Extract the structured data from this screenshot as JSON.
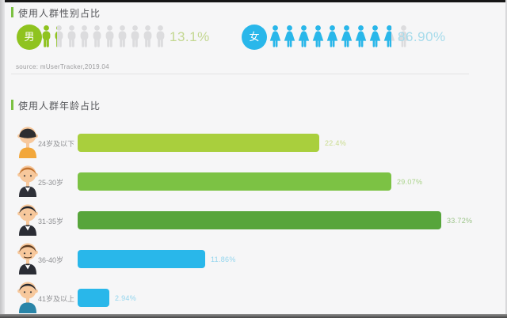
{
  "chart_data": [
    {
      "type": "pictogram",
      "title": "使用人群性别占比",
      "unit": "%",
      "icon_gray": "#dcdcde",
      "series": [
        {
          "name": "男",
          "value": 13.1,
          "label": "13.1%",
          "color": "#8fc31f",
          "value_color": "#c3d791",
          "icons_total": 10,
          "icons_filled": 1.31,
          "icon": "male-person-icon"
        },
        {
          "name": "女",
          "value": 86.9,
          "label": "86.90%",
          "color": "#29b7ea",
          "value_color": "#a6dbeb",
          "icons_total": 10,
          "icons_filled": 8.69,
          "icon": "female-person-icon"
        }
      ],
      "source": "source: mUserTracker,2019.04"
    },
    {
      "type": "bar",
      "orientation": "horizontal",
      "title": "使用人群年龄占比",
      "unit": "%",
      "categories": [
        "24岁及以下",
        "25-30岁",
        "31-35岁",
        "36-40岁",
        "41岁及以上"
      ],
      "values": [
        22.4,
        29.07,
        33.72,
        11.86,
        2.94
      ],
      "value_labels": [
        "22.4%",
        "29.07%",
        "33.72%",
        "11.86%",
        "2.94%"
      ],
      "bar_colors": [
        "#a9cf3d",
        "#7cc244",
        "#57a53b",
        "#29b7ea",
        "#29b7ea"
      ],
      "value_label_colors": [
        "#c9dc8e",
        "#a9d389",
        "#9cc489",
        "#93d5ee",
        "#93d5ee"
      ],
      "avatars": [
        "boy",
        "young-man",
        "man-suit",
        "man-mustache",
        "middle-aged-man"
      ],
      "xlim": [
        0,
        38.5
      ],
      "grid": false,
      "legend": "none"
    }
  ]
}
